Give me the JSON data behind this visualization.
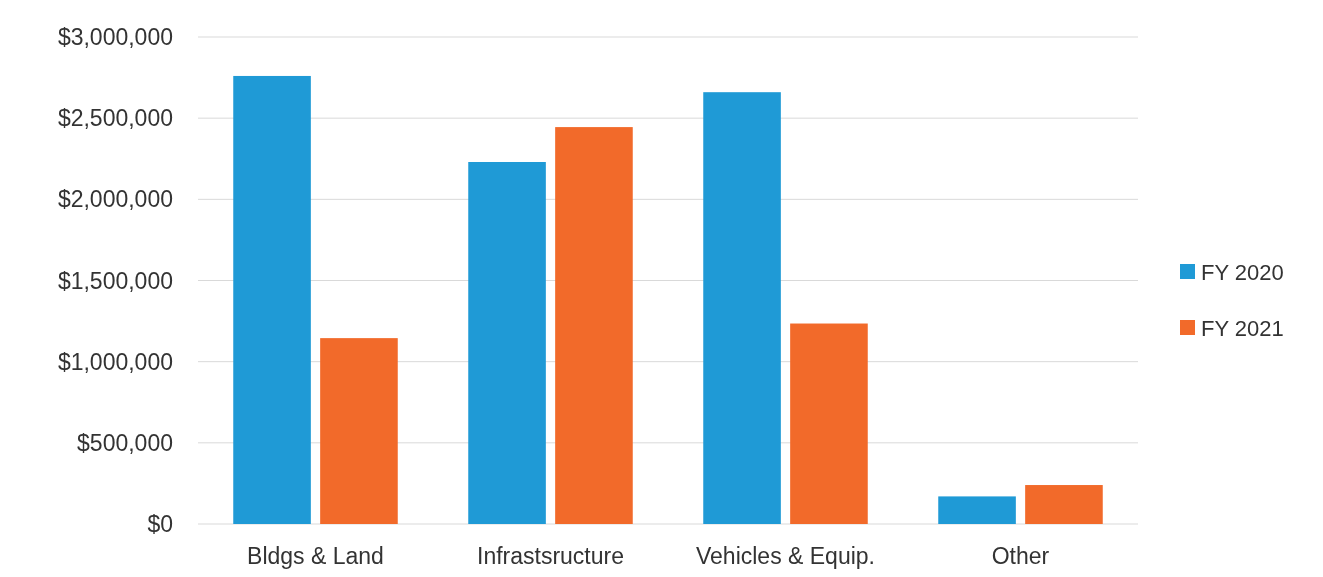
{
  "chart_data": {
    "type": "bar",
    "categories": [
      "Bldgs & Land",
      "Infrastsructure",
      "Vehicles & Equip.",
      "Other"
    ],
    "series": [
      {
        "name": "FY 2020",
        "color": "#1f9ad6",
        "values": [
          2760000,
          2230000,
          2660000,
          170000
        ]
      },
      {
        "name": "FY 2021",
        "color": "#f26a2a",
        "values": [
          1145000,
          2445000,
          1235000,
          240000
        ]
      }
    ],
    "ylim": [
      0,
      3000000
    ],
    "yticks": [
      {
        "value": 0,
        "label": "$0"
      },
      {
        "value": 500000,
        "label": "$500,000"
      },
      {
        "value": 1000000,
        "label": "$1,000,000"
      },
      {
        "value": 1500000,
        "label": "$1,500,000"
      },
      {
        "value": 2000000,
        "label": "$2,000,000"
      },
      {
        "value": 2500000,
        "label": "$2,500,000"
      },
      {
        "value": 3000000,
        "label": "$3,000,000"
      }
    ],
    "grid": "y",
    "legend": "right"
  }
}
